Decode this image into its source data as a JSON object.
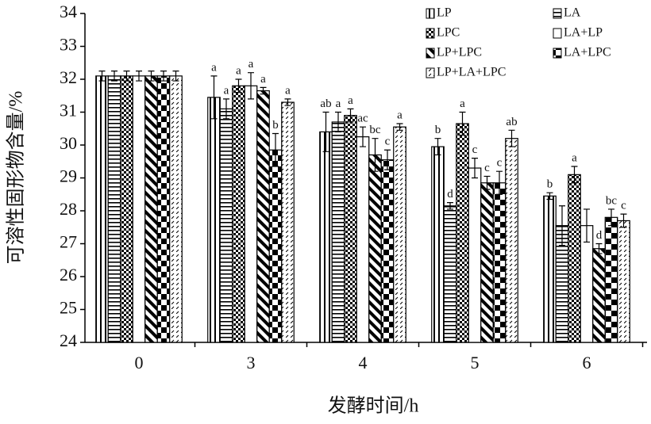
{
  "chart_data": {
    "type": "bar",
    "x_label": "发酵时间/h",
    "y_label": "可溶性固形物含量/%",
    "categories": [
      "0",
      "3",
      "4",
      "5",
      "6"
    ],
    "ylim": [
      24,
      34
    ],
    "yticks": [
      24,
      25,
      26,
      27,
      28,
      29,
      30,
      31,
      32,
      33,
      34
    ],
    "legend_position": "upper right",
    "series": [
      {
        "name": "LP",
        "color": "#000000",
        "values": [
          32.1,
          31.45,
          30.4,
          29.95,
          28.45
        ],
        "errors": [
          0.15,
          0.65,
          0.6,
          0.25,
          0.1
        ],
        "annotations": [
          null,
          "a",
          "ab",
          "b",
          "b"
        ]
      },
      {
        "name": "LA",
        "color": "#000000",
        "values": [
          32.1,
          31.1,
          30.7,
          28.15,
          27.55
        ],
        "errors": [
          0.15,
          0.3,
          0.3,
          0.1,
          0.6
        ],
        "annotations": [
          null,
          "a",
          "a",
          "d",
          null
        ]
      },
      {
        "name": "LPC",
        "color": "#000000",
        "values": [
          32.1,
          31.8,
          30.9,
          30.65,
          29.1
        ],
        "errors": [
          0.15,
          0.2,
          0.2,
          0.35,
          0.25
        ],
        "annotations": [
          null,
          "a",
          "a",
          "a",
          "a"
        ]
      },
      {
        "name": "LA+LP",
        "color": "#000000",
        "values": [
          32.1,
          31.8,
          30.25,
          29.3,
          27.55
        ],
        "errors": [
          0.15,
          0.4,
          0.3,
          0.3,
          0.5
        ],
        "annotations": [
          null,
          "a",
          "ac",
          "c",
          null
        ]
      },
      {
        "name": "LP+LPC",
        "color": "#000000",
        "values": [
          32.1,
          31.65,
          29.7,
          28.85,
          26.85
        ],
        "errors": [
          0.15,
          0.1,
          0.5,
          0.2,
          0.15
        ],
        "annotations": [
          null,
          "a",
          "bc",
          "c",
          "d"
        ]
      },
      {
        "name": "LA+LPC",
        "color": "#000000",
        "values": [
          32.1,
          29.85,
          29.55,
          28.85,
          27.8
        ],
        "errors": [
          0.15,
          0.5,
          0.3,
          0.35,
          0.25
        ],
        "annotations": [
          null,
          "b",
          "c",
          "c",
          "bc"
        ]
      },
      {
        "name": "LP+LA+LPC",
        "color": "#000000",
        "values": [
          32.1,
          31.3,
          30.55,
          30.2,
          27.7
        ],
        "errors": [
          0.15,
          0.1,
          0.1,
          0.25,
          0.2
        ],
        "annotations": [
          null,
          "a",
          "a",
          "ab",
          "c"
        ]
      }
    ]
  }
}
